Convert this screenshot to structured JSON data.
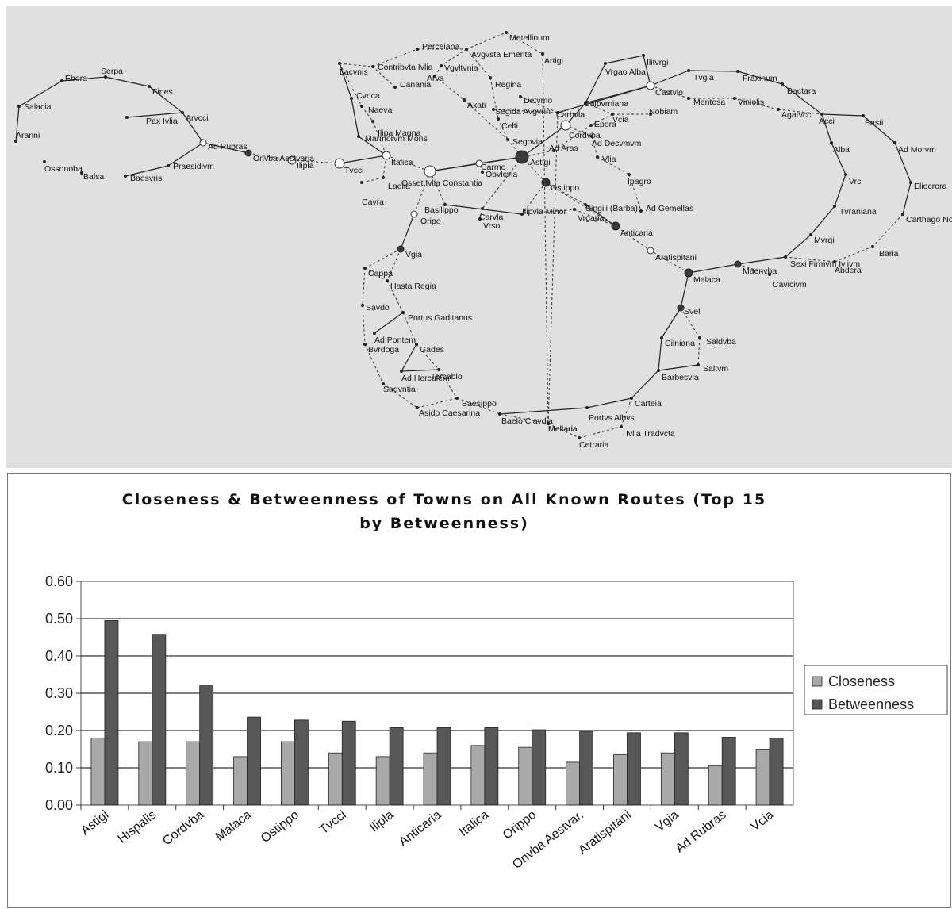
{
  "network": {
    "towns": [
      "Ebora",
      "Serpa",
      "Salacia",
      "Fines",
      "Pax Ivlia",
      "Arvcci",
      "Aranni",
      "Ad Rubras",
      "Ossonoba",
      "Praesidivm",
      "Balsa",
      "Baesvris",
      "Onvba Aestvaria",
      "Ilipla",
      "Tvcci",
      "Italica",
      "Laelia",
      "Cavra",
      "Lacvnis",
      "Contribvta Ivlia",
      "Canania",
      "Cvrica",
      "Naeva",
      "Ilipa Magna",
      "Marmorvm Mons",
      "Perceiana",
      "Avgvsta Emerita",
      "Metellinum",
      "Vgvltvnia",
      "Artigi",
      "Arva",
      "Regina",
      "Axati",
      "Detvmo",
      "Segida Avgvrin",
      "Celti",
      "Mellaria",
      "Carbvla",
      "Vrgao Alba",
      "Ilitvrgi",
      "Calpvrniana",
      "Castvlo",
      "Tvgia",
      "Fraxinum",
      "Bactara",
      "Mentesa",
      "Viniolis",
      "Agatvcci",
      "Acci",
      "Basti",
      "Alba",
      "Ad Morvm",
      "Vrci",
      "Eliocrora",
      "Tvraniana",
      "Carthago Nova",
      "Mvrgi",
      "Baria",
      "Sexi Firmvm Ivlivm",
      "Abdera",
      "Maenvba",
      "Cavicivm",
      "Vcia",
      "Nobiam",
      "Epora",
      "Cordvba",
      "Ad Decvmvm",
      "Ad Aras",
      "Segovia",
      "Astigi",
      "Carmo",
      "Obvlcvla",
      "Osset Ivlia Constantia",
      "Vlia",
      "Ipagro",
      "Ostippo",
      "Singili (Barba)",
      "Ad Gemellas",
      "Basilippo",
      "Carvla",
      "Vrso",
      "Ilipvla Minor",
      "Vrgapa",
      "Anticaria",
      "Aratispitani",
      "Malaca",
      "Oripo",
      "Vgia",
      "Cappa",
      "Hasta Regia",
      "Savdo",
      "Portus Gaditanus",
      "Ad Pontem",
      "Bvrdoga",
      "Gades",
      "Ad Herculem",
      "Tercablo",
      "Sagvntia",
      "Baesippo",
      "Asido Caesarina",
      "Baelo Clavdia",
      "Mellaria",
      "Portvs Albvs",
      "Carteia",
      "Cetraria",
      "Ivlia Tradvcta",
      "Svel",
      "Cilniana",
      "Saldvba",
      "Barbesvla",
      "Saltvm"
    ]
  },
  "chart_data": {
    "type": "bar",
    "title_lines": [
      "Closeness & Betweenness of Towns on All Known Routes (Top 15",
      "by Betweenness)"
    ],
    "categories": [
      "Astigi",
      "Hispalis",
      "Cordvba",
      "Malaca",
      "Ostippo",
      "Tvcci",
      "Ilipla",
      "Anticaria",
      "Italica",
      "Orippo",
      "Onvba Aestvar.",
      "Aratispitani",
      "Vgia",
      "Ad Rubras",
      "Vcia"
    ],
    "series": [
      {
        "name": "Closeness",
        "color": "#a9a9a9",
        "values": [
          0.18,
          0.17,
          0.17,
          0.13,
          0.17,
          0.14,
          0.13,
          0.14,
          0.16,
          0.155,
          0.115,
          0.135,
          0.14,
          0.105,
          0.15
        ]
      },
      {
        "name": "Betweenness",
        "color": "#575757",
        "values": [
          0.495,
          0.458,
          0.32,
          0.236,
          0.228,
          0.225,
          0.208,
          0.208,
          0.208,
          0.202,
          0.198,
          0.194,
          0.194,
          0.182,
          0.18
        ]
      }
    ],
    "yticks": [
      "0.00",
      "0.10",
      "0.20",
      "0.30",
      "0.40",
      "0.50",
      "0.60"
    ],
    "ylim": [
      0,
      0.6
    ],
    "grid": true,
    "legend": "right"
  }
}
